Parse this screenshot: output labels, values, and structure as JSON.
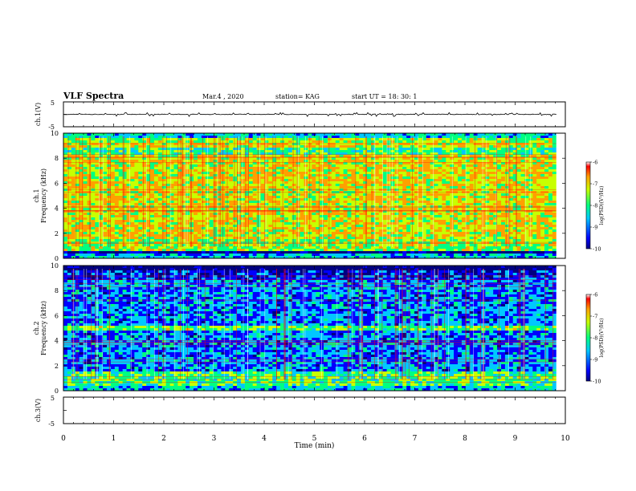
{
  "header": {
    "title": "VLF Spectra",
    "date": "Mar.4 , 2020",
    "station": "station= KAG",
    "start": "start UT = 18: 30: 1"
  },
  "chart_data": [
    {
      "type": "line",
      "panel": "ch1-waveform",
      "ylabel": "ch.1(V)",
      "ylim": [
        -5,
        5
      ],
      "yticks": [
        "5",
        "-5"
      ],
      "series_description_values": {
        "baseline": 0,
        "spikes": [
          -0.6,
          0.5
        ]
      }
    },
    {
      "type": "heatmap",
      "panel": "ch1-spectrogram",
      "ylabel_top": "ch.1",
      "ylabel": "Frequency (kHz)",
      "ylim": [
        0,
        10
      ],
      "yticks": [
        "0",
        "2",
        "4",
        "6",
        "8",
        "10"
      ],
      "colorbar": {
        "label": "log(PSD)(V²/Hz)",
        "range": [
          -10,
          -6
        ],
        "ticks": [
          "-6",
          "-7",
          "-8",
          "-9",
          "-10"
        ]
      },
      "dominant_level": -6.8
    },
    {
      "type": "heatmap",
      "panel": "ch2-spectrogram",
      "ylabel_top": "ch.2",
      "ylabel": "Frequency (kHz)",
      "ylim": [
        0,
        10
      ],
      "yticks": [
        "0",
        "2",
        "4",
        "6",
        "8",
        "10"
      ],
      "colorbar": {
        "label": "log(PSD)(V²/Hz)",
        "range": [
          -10,
          -6
        ],
        "ticks": [
          "-6",
          "-7",
          "-8",
          "-9",
          "-10"
        ]
      },
      "dominant_level": -8.6
    },
    {
      "type": "line",
      "panel": "ch3-waveform",
      "ylabel": "ch.3(V)",
      "ylim": [
        -5,
        5
      ],
      "yticks": [
        "5",
        "-5"
      ]
    }
  ],
  "xaxis": {
    "label": "Time (min)",
    "xlim": [
      0,
      10
    ],
    "ticks": [
      "0",
      "1",
      "2",
      "3",
      "4",
      "5",
      "6",
      "7",
      "8",
      "9",
      "10"
    ],
    "data_end": 9.82
  },
  "colors": {
    "colormap": [
      "#000080",
      "#0000ff",
      "#00c8ff",
      "#00ff80",
      "#c8ff00",
      "#ffa000",
      "#ff0000",
      "#ffffff"
    ]
  }
}
